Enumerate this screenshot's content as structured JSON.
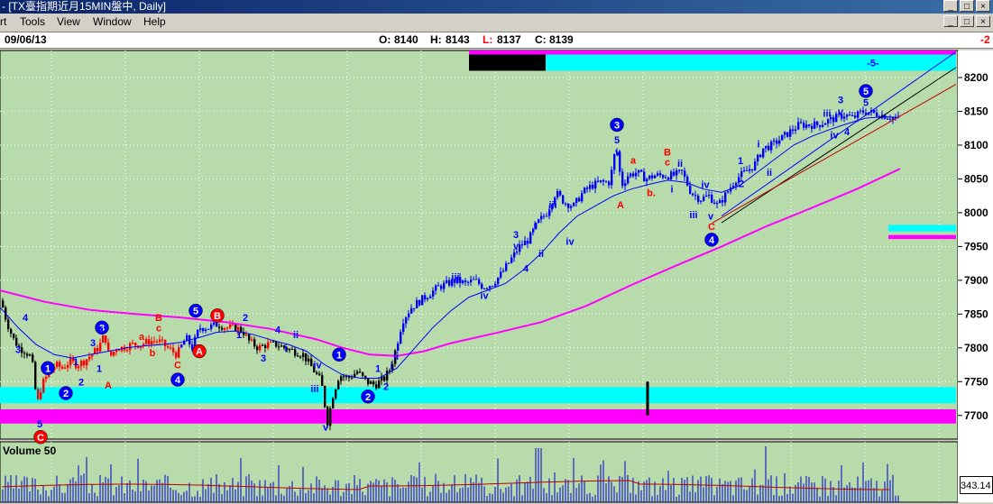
{
  "window": {
    "title": "- [TX臺指期近月15MIN盤中, Daily]",
    "controls": [
      "_",
      "□",
      "×"
    ]
  },
  "menu": {
    "items": [
      "rt",
      "Tools",
      "View",
      "Window",
      "Help"
    ]
  },
  "info": {
    "date": "09/06/13",
    "open_label": "O:",
    "open": "8140",
    "high_label": "H:",
    "high": "8143",
    "low_label": "L:",
    "low": "8137",
    "close_label": "C:",
    "close": "8139",
    "right_value": "-2"
  },
  "colors": {
    "plot_bg": "#b7dbaa",
    "up_candle": "#ff0000",
    "down_candle": "#000000",
    "blue_candle": "#0000ff",
    "ma_short": "#0000ff",
    "ma_long": "#ff00ff",
    "cyan_band": "#00ffff",
    "magenta_band": "#ff00ff",
    "channel_upper": "#0000ff",
    "channel_mid": "#000000",
    "channel_lower": "#c00000"
  },
  "volume": {
    "label": "Volume 50",
    "value": "343.14"
  },
  "chart_data": {
    "type": "candlestick",
    "y_axis_ticks": [
      8200,
      8150,
      8100,
      8050,
      8000,
      7950,
      7900,
      7850,
      7800,
      7750,
      7700
    ],
    "ylim": [
      7665,
      8240
    ],
    "grid": true,
    "price_path": [
      [
        0,
        7870
      ],
      [
        6,
        7840
      ],
      [
        13,
        7815
      ],
      [
        20,
        7800
      ],
      [
        27,
        7795
      ],
      [
        34,
        7785
      ],
      [
        40,
        7715
      ],
      [
        45,
        7745
      ],
      [
        52,
        7760
      ],
      [
        60,
        7775
      ],
      [
        68,
        7770
      ],
      [
        76,
        7780
      ],
      [
        84,
        7775
      ],
      [
        92,
        7780
      ],
      [
        100,
        7790
      ],
      [
        108,
        7800
      ],
      [
        115,
        7820
      ],
      [
        120,
        7785
      ],
      [
        128,
        7800
      ],
      [
        135,
        7800
      ],
      [
        145,
        7805
      ],
      [
        155,
        7805
      ],
      [
        165,
        7810
      ],
      [
        175,
        7810
      ],
      [
        185,
        7800
      ],
      [
        195,
        7790
      ],
      [
        205,
        7815
      ],
      [
        212,
        7800
      ],
      [
        220,
        7830
      ],
      [
        230,
        7830
      ],
      [
        240,
        7835
      ],
      [
        250,
        7830
      ],
      [
        260,
        7830
      ],
      [
        268,
        7825
      ],
      [
        275,
        7810
      ],
      [
        285,
        7800
      ],
      [
        295,
        7805
      ],
      [
        305,
        7805
      ],
      [
        315,
        7800
      ],
      [
        325,
        7795
      ],
      [
        335,
        7790
      ],
      [
        345,
        7770
      ],
      [
        355,
        7750
      ],
      [
        362,
        7690
      ],
      [
        368,
        7730
      ],
      [
        375,
        7760
      ],
      [
        385,
        7755
      ],
      [
        395,
        7765
      ],
      [
        405,
        7750
      ],
      [
        415,
        7745
      ],
      [
        425,
        7755
      ],
      [
        432,
        7770
      ],
      [
        438,
        7800
      ],
      [
        445,
        7840
      ],
      [
        455,
        7860
      ],
      [
        465,
        7870
      ],
      [
        475,
        7880
      ],
      [
        485,
        7890
      ],
      [
        495,
        7895
      ],
      [
        505,
        7900
      ],
      [
        515,
        7895
      ],
      [
        525,
        7900
      ],
      [
        535,
        7890
      ],
      [
        545,
        7895
      ],
      [
        555,
        7910
      ],
      [
        565,
        7930
      ],
      [
        575,
        7950
      ],
      [
        585,
        7960
      ],
      [
        595,
        7985
      ],
      [
        605,
        8000
      ],
      [
        615,
        8030
      ],
      [
        625,
        8015
      ],
      [
        635,
        8010
      ],
      [
        645,
        8030
      ],
      [
        655,
        8040
      ],
      [
        665,
        8045
      ],
      [
        675,
        8045
      ],
      [
        682,
        8100
      ],
      [
        688,
        8040
      ],
      [
        695,
        8055
      ],
      [
        705,
        8060
      ],
      [
        715,
        8050
      ],
      [
        725,
        8055
      ],
      [
        735,
        8055
      ],
      [
        745,
        8055
      ],
      [
        755,
        8060
      ],
      [
        765,
        8030
      ],
      [
        775,
        8020
      ],
      [
        785,
        8025
      ],
      [
        795,
        8010
      ],
      [
        805,
        8030
      ],
      [
        815,
        8050
      ],
      [
        825,
        8060
      ],
      [
        835,
        8070
      ],
      [
        845,
        8095
      ],
      [
        855,
        8100
      ],
      [
        865,
        8110
      ],
      [
        875,
        8120
      ],
      [
        885,
        8130
      ],
      [
        895,
        8130
      ],
      [
        905,
        8130
      ],
      [
        915,
        8135
      ],
      [
        925,
        8140
      ],
      [
        935,
        8145
      ],
      [
        945,
        8140
      ],
      [
        955,
        8150
      ],
      [
        965,
        8148
      ],
      [
        975,
        8145
      ],
      [
        985,
        8142
      ],
      [
        995,
        8139
      ]
    ],
    "ma_short": [
      [
        0,
        7860
      ],
      [
        20,
        7830
      ],
      [
        40,
        7805
      ],
      [
        60,
        7790
      ],
      [
        80,
        7785
      ],
      [
        100,
        7790
      ],
      [
        120,
        7795
      ],
      [
        140,
        7800
      ],
      [
        160,
        7803
      ],
      [
        180,
        7805
      ],
      [
        200,
        7808
      ],
      [
        220,
        7815
      ],
      [
        240,
        7823
      ],
      [
        260,
        7825
      ],
      [
        280,
        7820
      ],
      [
        300,
        7812
      ],
      [
        320,
        7805
      ],
      [
        340,
        7795
      ],
      [
        360,
        7775
      ],
      [
        380,
        7760
      ],
      [
        400,
        7755
      ],
      [
        420,
        7755
      ],
      [
        440,
        7770
      ],
      [
        460,
        7800
      ],
      [
        480,
        7830
      ],
      [
        500,
        7855
      ],
      [
        520,
        7875
      ],
      [
        540,
        7885
      ],
      [
        560,
        7895
      ],
      [
        580,
        7915
      ],
      [
        600,
        7940
      ],
      [
        620,
        7970
      ],
      [
        640,
        7995
      ],
      [
        660,
        8010
      ],
      [
        680,
        8025
      ],
      [
        700,
        8035
      ],
      [
        720,
        8042
      ],
      [
        740,
        8048
      ],
      [
        760,
        8045
      ],
      [
        780,
        8035
      ],
      [
        800,
        8030
      ],
      [
        820,
        8040
      ],
      [
        840,
        8060
      ],
      [
        860,
        8080
      ],
      [
        880,
        8100
      ],
      [
        900,
        8113
      ],
      [
        920,
        8123
      ],
      [
        940,
        8132
      ],
      [
        960,
        8140
      ],
      [
        980,
        8142
      ],
      [
        995,
        8141
      ]
    ],
    "ma_long": [
      [
        0,
        7885
      ],
      [
        50,
        7868
      ],
      [
        100,
        7856
      ],
      [
        150,
        7850
      ],
      [
        200,
        7845
      ],
      [
        250,
        7838
      ],
      [
        300,
        7828
      ],
      [
        350,
        7813
      ],
      [
        380,
        7800
      ],
      [
        410,
        7790
      ],
      [
        440,
        7788
      ],
      [
        470,
        7795
      ],
      [
        500,
        7807
      ],
      [
        550,
        7822
      ],
      [
        600,
        7838
      ],
      [
        650,
        7862
      ],
      [
        700,
        7893
      ],
      [
        750,
        7922
      ],
      [
        800,
        7950
      ],
      [
        850,
        7980
      ],
      [
        900,
        8007
      ],
      [
        950,
        8035
      ],
      [
        998,
        8065
      ]
    ],
    "channel_lines": [
      {
        "name": "upper",
        "from": [
          800,
          7995
        ],
        "to": [
          1060,
          8238
        ]
      },
      {
        "name": "middle",
        "from": [
          800,
          7985
        ],
        "to": [
          1060,
          8215
        ]
      },
      {
        "name": "lower",
        "from": [
          790,
          7985
        ],
        "to": [
          1060,
          8190
        ]
      }
    ],
    "bands": [
      {
        "color": "cyan",
        "from_x": 605,
        "to_x": 1060,
        "y_top": 8234,
        "y_bottom": 8210
      },
      {
        "color": "black",
        "from_x": 520,
        "to_x": 605,
        "y_top": 8234,
        "y_bottom": 8210
      },
      {
        "color": "magenta",
        "from_x": 520,
        "to_x": 1060,
        "y_top": 8240,
        "y_bottom": 8234
      },
      {
        "color": "cyan",
        "from_x": 0,
        "to_x": 1060,
        "y_top": 7742,
        "y_bottom": 7718
      },
      {
        "color": "magenta",
        "from_x": 0,
        "to_x": 1060,
        "y_top": 7709,
        "y_bottom": 7688
      },
      {
        "color": "cyan",
        "from_x": 985,
        "to_x": 1060,
        "y_top": 7982,
        "y_bottom": 7972
      },
      {
        "color": "magenta",
        "from_x": 985,
        "to_x": 1060,
        "y_top": 7967,
        "y_bottom": 7961
      }
    ],
    "wave_labels": [
      {
        "t": "3",
        "x": 20,
        "v": 7798,
        "c": "blue"
      },
      {
        "t": "4",
        "x": 28,
        "v": 7845,
        "c": "blue"
      },
      {
        "t": "5",
        "x": 44,
        "v": 7688,
        "c": "blue"
      },
      {
        "t": "C",
        "x": 45,
        "v": 7668,
        "c": "red",
        "circle": true
      },
      {
        "t": "1",
        "x": 53,
        "v": 7770,
        "c": "blue",
        "circle": true
      },
      {
        "t": "2",
        "x": 73,
        "v": 7733,
        "c": "blue",
        "circle": true
      },
      {
        "t": "1",
        "x": 84,
        "v": 7780,
        "c": "blue"
      },
      {
        "t": "2",
        "x": 90,
        "v": 7750,
        "c": "blue"
      },
      {
        "t": "3",
        "x": 103,
        "v": 7808,
        "c": "blue"
      },
      {
        "t": "1",
        "x": 110,
        "v": 7770,
        "c": "blue"
      },
      {
        "t": "3",
        "x": 113,
        "v": 7830,
        "c": "blue",
        "circle": true
      },
      {
        "t": "5",
        "x": 112,
        "v": 7825,
        "c": "blue"
      },
      {
        "t": "A",
        "x": 120,
        "v": 7745,
        "c": "red"
      },
      {
        "t": "a",
        "x": 157,
        "v": 7817,
        "c": "red"
      },
      {
        "t": "b",
        "x": 169,
        "v": 7793,
        "c": "red"
      },
      {
        "t": "B",
        "x": 176,
        "v": 7845,
        "c": "red"
      },
      {
        "t": "c",
        "x": 176,
        "v": 7830,
        "c": "red"
      },
      {
        "t": "C",
        "x": 197,
        "v": 7775,
        "c": "red"
      },
      {
        "t": "4",
        "x": 197,
        "v": 7753,
        "c": "blue",
        "circle": true
      },
      {
        "t": "5",
        "x": 217,
        "v": 7855,
        "c": "blue",
        "circle": true
      },
      {
        "t": "A",
        "x": 221,
        "v": 7795,
        "c": "red",
        "circle": true
      },
      {
        "t": "B",
        "x": 241,
        "v": 7848,
        "c": "red",
        "circle": true
      },
      {
        "t": "1",
        "x": 265,
        "v": 7820,
        "c": "blue"
      },
      {
        "t": "2",
        "x": 272,
        "v": 7845,
        "c": "blue"
      },
      {
        "t": "3",
        "x": 292,
        "v": 7785,
        "c": "blue"
      },
      {
        "t": "4",
        "x": 308,
        "v": 7827,
        "c": "blue"
      },
      {
        "t": "ii",
        "x": 328,
        "v": 7820,
        "c": "blue"
      },
      {
        "t": "i",
        "x": 317,
        "v": 7800,
        "c": "blue"
      },
      {
        "t": "iv",
        "x": 352,
        "v": 7775,
        "c": "blue"
      },
      {
        "t": "iii",
        "x": 349,
        "v": 7740,
        "c": "blue"
      },
      {
        "t": "v",
        "x": 361,
        "v": 7683,
        "c": "blue"
      },
      {
        "t": "1",
        "x": 376,
        "v": 7790,
        "c": "blue",
        "circle": true
      },
      {
        "t": "2",
        "x": 408,
        "v": 7728,
        "c": "blue",
        "circle": true
      },
      {
        "t": "1",
        "x": 419,
        "v": 7770,
        "c": "blue"
      },
      {
        "t": "2",
        "x": 428,
        "v": 7743,
        "c": "blue"
      },
      {
        "t": "i",
        "x": 434,
        "v": 7774,
        "c": "blue"
      },
      {
        "t": "ii",
        "x": 439,
        "v": 7788,
        "c": "blue"
      },
      {
        "t": "iii",
        "x": 505,
        "v": 7905,
        "c": "blue"
      },
      {
        "t": "iv",
        "x": 537,
        "v": 7878,
        "c": "blue"
      },
      {
        "t": "3",
        "x": 572,
        "v": 7968,
        "c": "blue"
      },
      {
        "t": "v",
        "x": 572,
        "v": 7951,
        "c": "blue"
      },
      {
        "t": "4",
        "x": 583,
        "v": 7918,
        "c": "blue"
      },
      {
        "t": "i",
        "x": 593,
        "v": 7982,
        "c": "blue"
      },
      {
        "t": "ii",
        "x": 600,
        "v": 7940,
        "c": "blue"
      },
      {
        "t": "iii",
        "x": 613,
        "v": 8012,
        "c": "blue"
      },
      {
        "t": "iv",
        "x": 632,
        "v": 7958,
        "c": "blue"
      },
      {
        "t": "3",
        "x": 684,
        "v": 8130,
        "c": "blue",
        "circle": true
      },
      {
        "t": "5",
        "x": 684,
        "v": 8108,
        "c": "blue"
      },
      {
        "t": "v",
        "x": 685,
        "v": 8090,
        "c": "blue"
      },
      {
        "t": "a",
        "x": 702,
        "v": 8078,
        "c": "red"
      },
      {
        "t": "A",
        "x": 688,
        "v": 8012,
        "c": "red"
      },
      {
        "t": "b.",
        "x": 722,
        "v": 8030,
        "c": "red"
      },
      {
        "t": "B",
        "x": 740,
        "v": 8090,
        "c": "red"
      },
      {
        "t": "c",
        "x": 740,
        "v": 8075,
        "c": "red"
      },
      {
        "t": "ii",
        "x": 754,
        "v": 8073,
        "c": "blue"
      },
      {
        "t": "i",
        "x": 745,
        "v": 8035,
        "c": "blue"
      },
      {
        "t": "iv",
        "x": 782,
        "v": 8042,
        "c": "blue"
      },
      {
        "t": "iii",
        "x": 769,
        "v": 7997,
        "c": "blue"
      },
      {
        "t": "v",
        "x": 788,
        "v": 7995,
        "c": "blue"
      },
      {
        "t": "C",
        "x": 789,
        "v": 7980,
        "c": "red"
      },
      {
        "t": "4",
        "x": 789,
        "v": 7960,
        "c": "blue",
        "circle": true
      },
      {
        "t": "1",
        "x": 821,
        "v": 8077,
        "c": "blue"
      },
      {
        "t": "2",
        "x": 822,
        "v": 8043,
        "c": "blue"
      },
      {
        "t": "i",
        "x": 841,
        "v": 8102,
        "c": "blue"
      },
      {
        "t": "ii",
        "x": 853,
        "v": 8060,
        "c": "blue"
      },
      {
        "t": "iii",
        "x": 917,
        "v": 8147,
        "c": "blue"
      },
      {
        "t": "v",
        "x": 932,
        "v": 8150,
        "c": "blue"
      },
      {
        "t": "3",
        "x": 932,
        "v": 8167,
        "c": "blue"
      },
      {
        "t": "iv",
        "x": 925,
        "v": 8115,
        "c": "blue"
      },
      {
        "t": "4",
        "x": 939,
        "v": 8120,
        "c": "blue"
      },
      {
        "t": "5",
        "x": 960,
        "v": 8163,
        "c": "blue"
      },
      {
        "t": "5",
        "x": 960,
        "v": 8180,
        "c": "blue",
        "circle": true
      },
      {
        "t": "-5-",
        "x": 968,
        "v": 8222,
        "c": "blue"
      }
    ],
    "volume_markers": [
      {
        "x": 718,
        "v_from": 7750,
        "v_to": 7700
      }
    ]
  }
}
